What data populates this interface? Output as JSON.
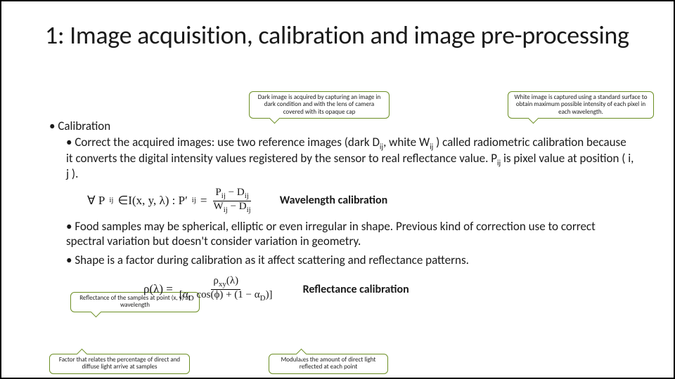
{
  "title": "1: Image acquisition, calibration and image pre-processing",
  "section": "Calibration",
  "callouts": {
    "darkImage": "Dark image is acquired by capturing an image in dark condition and with the lens of camera covered with its opaque cap",
    "whiteImage": "White image is captured using a standard surface to obtain maximum possible intensity of each pixel in each wavelength.",
    "reflectancePoint": "Reflectance of the samples at point (x, y) at wavelength",
    "factor": "Factor that relates the percentage of direct and diffuse light arrive at samples",
    "modulates": "Modulates the amount of direct light reflected at each point"
  },
  "bullets": {
    "b1a": "Correct the acquired images: use two reference images (dark D",
    "b1b": ", white W",
    "b1c": " ) called radiometric calibration because it converts the digital intensity values registered by the sensor to real reflectance value. P",
    "b1d": " is pixel value at position ( i, j ).",
    "b2": "Food samples may be spherical, elliptic or even irregular in shape. Previous kind of correction use to correct spectral variation but doesn't consider variation in geometry.",
    "b3": "Shape is a factor during calibration as it affect scattering and reflectance patterns."
  },
  "eqLabels": {
    "wave": "Wavelength calibration",
    "refl": "Reflectance calibration"
  },
  "formula1": {
    "prefix": "∀ P",
    "sub1": "ij",
    "mid": "∈I(x, y, λ) : P′",
    "sub2": "ij",
    "eq": " = ",
    "numA": "P",
    "numB": " − D",
    "denA": "W",
    "denB": " − D",
    "subij": "ij"
  },
  "formula2": {
    "lhs": "ρ(λ) = ",
    "numA": "ρ",
    "numSub": "xy",
    "numB": "(λ)",
    "denA": "[α",
    "denSub1": "D",
    "denB": " cos(ϕ) + (1 − α",
    "denSub2": "D",
    "denC": ")]"
  },
  "colors": {
    "calloutBorder": "#6b8e23",
    "text": "#1a1a1a",
    "background": "#ffffff",
    "slideBorder": "#000000"
  },
  "fontsizes": {
    "title": 36,
    "body": 17,
    "callout": 9,
    "eqLabel": 16
  }
}
